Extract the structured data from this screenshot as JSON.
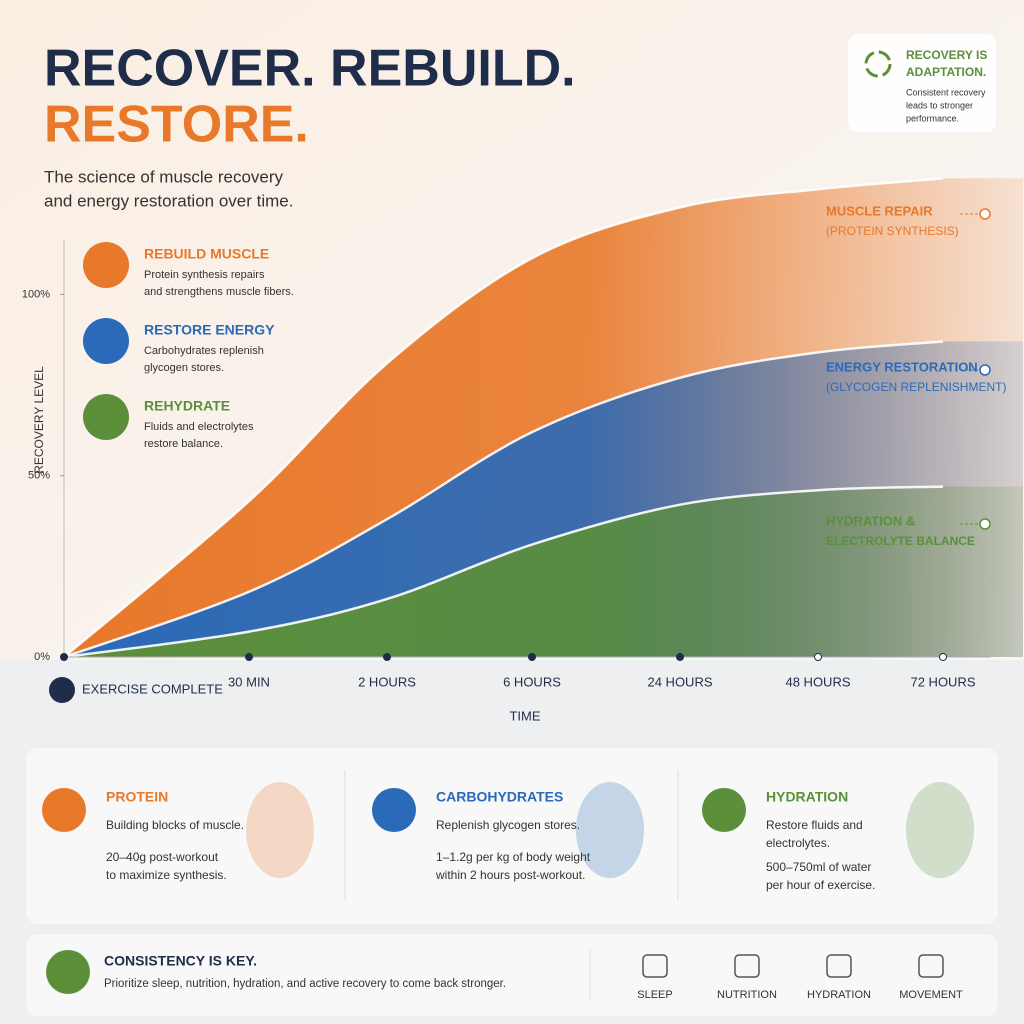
{
  "header": {
    "title_line1": "RECOVER. REBUILD.",
    "title_line2": "RESTORE.",
    "subtitle": [
      "The science of muscle recovery",
      "and energy restoration over time."
    ]
  },
  "callout": {
    "title": [
      "RECOVERY IS",
      "ADAPTATION."
    ],
    "text": [
      "Consistent recovery",
      "leads to stronger",
      "performance."
    ]
  },
  "benefits": [
    {
      "title": "REBUILD MUSCLE",
      "lines": [
        "Protein synthesis repairs",
        "and strengthens muscle fibers."
      ]
    },
    {
      "title": "RESTORE ENERGY",
      "lines": [
        "Carbohydrates replenish",
        "glycogen stores."
      ]
    },
    {
      "title": "REHYDRATE",
      "lines": [
        "Fluids and electrolytes",
        "restore balance."
      ]
    }
  ],
  "chart_data": {
    "type": "area",
    "x_label": "TIME",
    "y_label": "RECOVERY LEVEL",
    "categories": [
      "EXERCISE COMPLETE",
      "30 MIN",
      "2 HOURS",
      "6 HOURS",
      "24 HOURS",
      "48 HOURS",
      "72 HOURS"
    ],
    "ylim": [
      0,
      115
    ],
    "yticks": [
      {
        "value": 0,
        "label": "0%"
      },
      {
        "value": 50,
        "label": "50%"
      },
      {
        "value": 100,
        "label": "100%"
      }
    ],
    "series": [
      {
        "name": "MUSCLE REPAIR",
        "subtitle": "(PROTEIN SYNTHESIS)",
        "color": "#e8782a",
        "values": [
          0,
          43,
          81,
          110,
          124,
          129,
          132
        ]
      },
      {
        "name": "ENERGY RESTORATION",
        "subtitle": "(GLYCOGEN REPLENISHMENT)",
        "color": "#2a6ab8",
        "values": [
          0,
          18,
          38,
          62,
          77,
          84,
          87
        ]
      },
      {
        "name": "HYDRATION &",
        "subtitle": "ELECTROLYTE BALANCE",
        "color": "#5b8f3a",
        "values": [
          0,
          7,
          16,
          31,
          42,
          46,
          47
        ]
      }
    ]
  },
  "nutrients": [
    {
      "title": "PROTEIN",
      "lines": [
        "Building blocks of muscle."
      ],
      "detail": [
        "20–40g post-workout",
        "to maximize synthesis."
      ]
    },
    {
      "title": "CARBOHYDRATES",
      "lines": [
        "Replenish glycogen stores."
      ],
      "detail": [
        "1–1.2g per kg of body weight",
        "within 2 hours post-workout."
      ]
    },
    {
      "title": "HYDRATION",
      "lines": [
        "Restore fluids and",
        "electrolytes."
      ],
      "detail": [
        "500–750ml of water",
        "per hour of exercise."
      ]
    }
  ],
  "footer": {
    "title": "CONSISTENCY IS KEY.",
    "text": "Prioritize sleep, nutrition, hydration, and active recovery to come back stronger.",
    "habits": [
      "SLEEP",
      "NUTRITION",
      "HYDRATION",
      "MOVEMENT"
    ]
  }
}
